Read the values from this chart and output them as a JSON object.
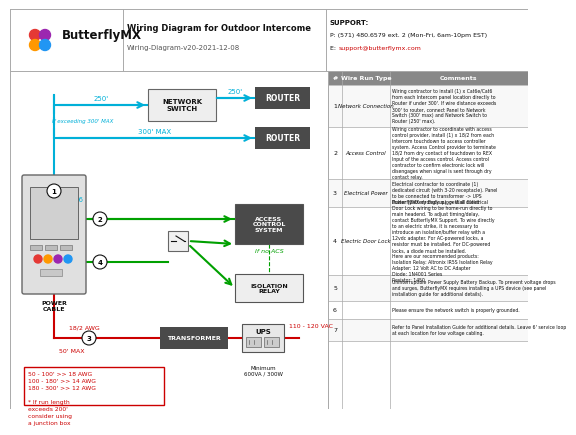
{
  "title": "Wiring Diagram for Outdoor Intercome",
  "subtitle": "Wiring-Diagram-v20-2021-12-08",
  "company": "ButterflyMX",
  "support_label": "SUPPORT:",
  "support_phone": "P: (571) 480.6579 ext. 2 (Mon-Fri, 6am-10pm EST)",
  "support_email_prefix": "E: ",
  "support_email": "support@butterflymx.com",
  "bg_color": "#ffffff",
  "dark_box_fill": "#4a4a4a",
  "cyan_color": "#00b0d8",
  "green_color": "#00a000",
  "red_color": "#cc0000",
  "wire_rows": [
    {
      "num": "1",
      "type": "Network Connection",
      "comment": "Wiring contractor to install (1) x Cat6e/Cat6\nfrom each Intercom panel location directly to\nRouter if under 300'. If wire distance exceeds\n300' to router, connect Panel to Network\nSwitch (300' max) and Network Switch to\nRouter (250' max)."
    },
    {
      "num": "2",
      "type": "Access Control",
      "comment": "Wiring contractor to coordinate with access\ncontrol provider, install (1) x 18/2 from each\nIntercom touchdown to access controller\nsystem. Access Control provider to terminate\n18/2 from dry contact of touchdown to REX\nInput of the access control. Access control\ncontractor to confirm electronic lock will\ndisengages when signal is sent through dry\ncontact relay."
    },
    {
      "num": "3",
      "type": "Electrical Power",
      "comment": "Electrical contractor to coordinate (1)\ndedicated circuit (with 3-20 receptacle). Panel\nto be connected to transformer -> UPS\nPower (Battery Backup) -> Wall outlet"
    },
    {
      "num": "4",
      "type": "Electric Door Lock",
      "comment": "ButterflyMX strongly suggest all Electrical\nDoor Lock wiring to be home-run directly to\nmain headend. To adjust timing/delay,\ncontact ButterflyMX Support. To wire directly\nto an electric strike, it is necessary to\nintroduce an isolation/buffer relay with a\n12vdc adapter. For AC-powered locks, a\nresistor must be installed. For DC-powered\nlocks, a diode must be installed.\nHere are our recommended products:\nIsolation Relay: Altronix IR5S Isolation Relay\nAdapter: 12 Volt AC to DC Adapter\nDiode: 1N4001 Series\nResistor: 1450"
    },
    {
      "num": "5",
      "type": "",
      "comment": "Uninterruptible Power Supply Battery Backup. To prevent voltage drops\nand surges, ButterflyMX requires installing a UPS device (see panel\ninstallation guide for additional details)."
    },
    {
      "num": "6",
      "type": "",
      "comment": "Please ensure the network switch is properly grounded."
    },
    {
      "num": "7",
      "type": "",
      "comment": "Refer to Panel Installation Guide for additional details. Leave 6' service loop\nat each location for low voltage cabling."
    }
  ]
}
